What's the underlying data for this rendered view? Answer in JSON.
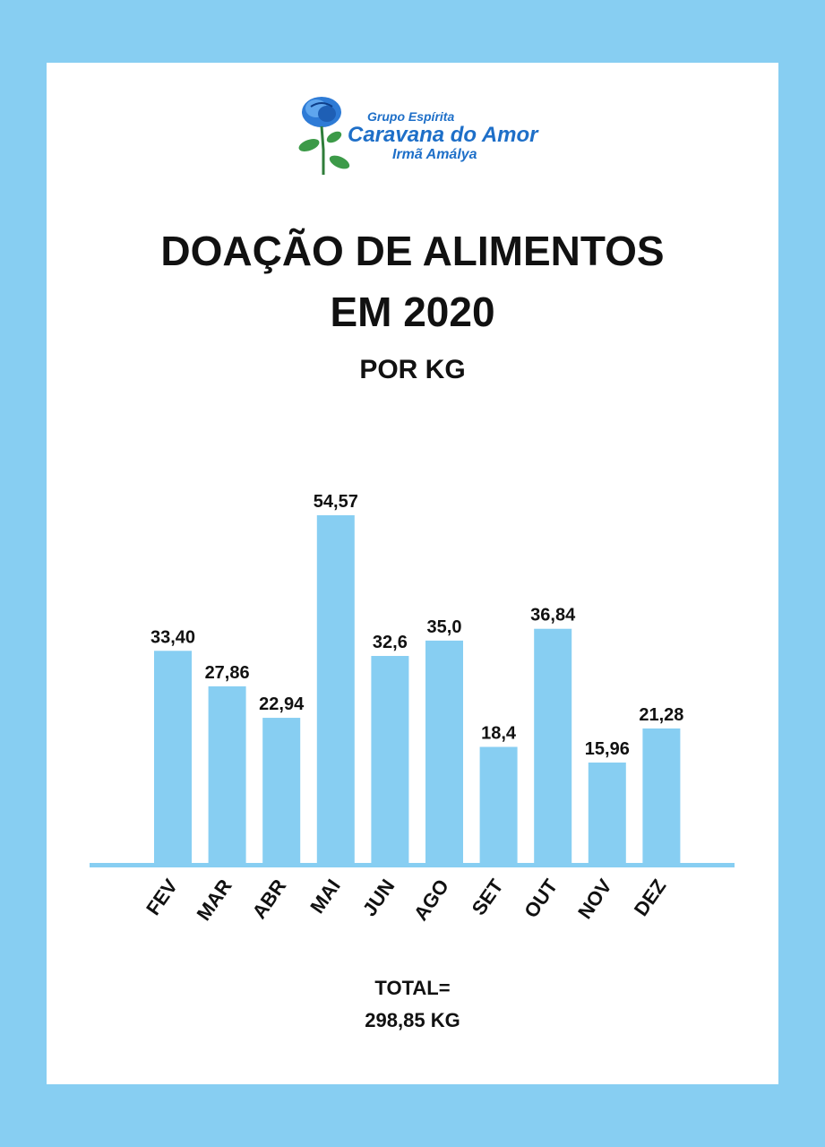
{
  "logo": {
    "line1": "Grupo Espírita",
    "line2": "Caravana do Amor",
    "line3": "Irmã Amálya",
    "icon": "blue-rose-icon"
  },
  "title_line1": "DOAÇÃO DE ALIMENTOS",
  "title_line2": "EM 2020",
  "subtitle": "POR KG",
  "total_label": "TOTAL=",
  "total_value": "298,85 KG",
  "colors": {
    "background": "#87CEF2",
    "bar": "#87CEF2",
    "text": "#111111"
  },
  "chart_data": {
    "type": "bar",
    "title": "DOAÇÃO DE ALIMENTOS EM 2020",
    "subtitle": "POR KG",
    "categories": [
      "FEV",
      "MAR",
      "ABR",
      "MAI",
      "JUN",
      "AGO",
      "SET",
      "OUT",
      "NOV",
      "DEZ"
    ],
    "values": [
      33.4,
      27.86,
      22.94,
      54.57,
      32.6,
      35.0,
      18.4,
      36.84,
      15.96,
      21.28
    ],
    "value_labels": [
      "33,40",
      "27,86",
      "22,94",
      "54,57",
      "32,6",
      "35,0",
      "18,4",
      "36,84",
      "15,96",
      "21,28"
    ],
    "xlabel": "",
    "ylabel": "",
    "ylim": [
      0,
      54.57
    ],
    "grid": false,
    "legend": "none"
  }
}
